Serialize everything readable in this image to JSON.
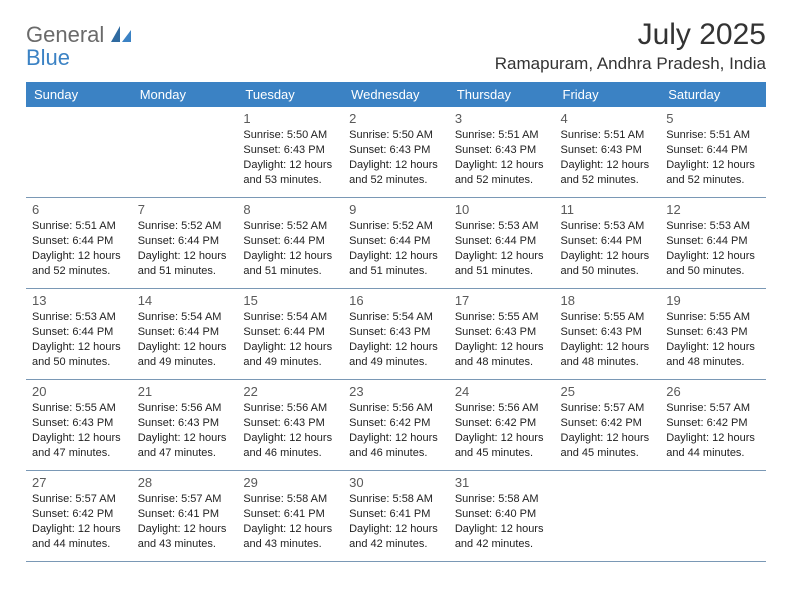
{
  "logo": {
    "general": "General",
    "blue": "Blue"
  },
  "title": "July 2025",
  "location": "Ramapuram, Andhra Pradesh, India",
  "colors": {
    "header_bg": "#3b82c4",
    "header_text": "#ffffff",
    "row_border": "#7a98b5",
    "text": "#222222",
    "daynum": "#5a5a5a",
    "logo_gray": "#6a6a6a",
    "logo_blue": "#3b82c4",
    "page_bg": "#ffffff"
  },
  "weekdays": [
    "Sunday",
    "Monday",
    "Tuesday",
    "Wednesday",
    "Thursday",
    "Friday",
    "Saturday"
  ],
  "weeks": [
    [
      null,
      null,
      {
        "n": "1",
        "sr": "5:50 AM",
        "ss": "6:43 PM",
        "dl1": "Daylight: 12 hours",
        "dl2": "and 53 minutes."
      },
      {
        "n": "2",
        "sr": "5:50 AM",
        "ss": "6:43 PM",
        "dl1": "Daylight: 12 hours",
        "dl2": "and 52 minutes."
      },
      {
        "n": "3",
        "sr": "5:51 AM",
        "ss": "6:43 PM",
        "dl1": "Daylight: 12 hours",
        "dl2": "and 52 minutes."
      },
      {
        "n": "4",
        "sr": "5:51 AM",
        "ss": "6:43 PM",
        "dl1": "Daylight: 12 hours",
        "dl2": "and 52 minutes."
      },
      {
        "n": "5",
        "sr": "5:51 AM",
        "ss": "6:44 PM",
        "dl1": "Daylight: 12 hours",
        "dl2": "and 52 minutes."
      }
    ],
    [
      {
        "n": "6",
        "sr": "5:51 AM",
        "ss": "6:44 PM",
        "dl1": "Daylight: 12 hours",
        "dl2": "and 52 minutes."
      },
      {
        "n": "7",
        "sr": "5:52 AM",
        "ss": "6:44 PM",
        "dl1": "Daylight: 12 hours",
        "dl2": "and 51 minutes."
      },
      {
        "n": "8",
        "sr": "5:52 AM",
        "ss": "6:44 PM",
        "dl1": "Daylight: 12 hours",
        "dl2": "and 51 minutes."
      },
      {
        "n": "9",
        "sr": "5:52 AM",
        "ss": "6:44 PM",
        "dl1": "Daylight: 12 hours",
        "dl2": "and 51 minutes."
      },
      {
        "n": "10",
        "sr": "5:53 AM",
        "ss": "6:44 PM",
        "dl1": "Daylight: 12 hours",
        "dl2": "and 51 minutes."
      },
      {
        "n": "11",
        "sr": "5:53 AM",
        "ss": "6:44 PM",
        "dl1": "Daylight: 12 hours",
        "dl2": "and 50 minutes."
      },
      {
        "n": "12",
        "sr": "5:53 AM",
        "ss": "6:44 PM",
        "dl1": "Daylight: 12 hours",
        "dl2": "and 50 minutes."
      }
    ],
    [
      {
        "n": "13",
        "sr": "5:53 AM",
        "ss": "6:44 PM",
        "dl1": "Daylight: 12 hours",
        "dl2": "and 50 minutes."
      },
      {
        "n": "14",
        "sr": "5:54 AM",
        "ss": "6:44 PM",
        "dl1": "Daylight: 12 hours",
        "dl2": "and 49 minutes."
      },
      {
        "n": "15",
        "sr": "5:54 AM",
        "ss": "6:44 PM",
        "dl1": "Daylight: 12 hours",
        "dl2": "and 49 minutes."
      },
      {
        "n": "16",
        "sr": "5:54 AM",
        "ss": "6:43 PM",
        "dl1": "Daylight: 12 hours",
        "dl2": "and 49 minutes."
      },
      {
        "n": "17",
        "sr": "5:55 AM",
        "ss": "6:43 PM",
        "dl1": "Daylight: 12 hours",
        "dl2": "and 48 minutes."
      },
      {
        "n": "18",
        "sr": "5:55 AM",
        "ss": "6:43 PM",
        "dl1": "Daylight: 12 hours",
        "dl2": "and 48 minutes."
      },
      {
        "n": "19",
        "sr": "5:55 AM",
        "ss": "6:43 PM",
        "dl1": "Daylight: 12 hours",
        "dl2": "and 48 minutes."
      }
    ],
    [
      {
        "n": "20",
        "sr": "5:55 AM",
        "ss": "6:43 PM",
        "dl1": "Daylight: 12 hours",
        "dl2": "and 47 minutes."
      },
      {
        "n": "21",
        "sr": "5:56 AM",
        "ss": "6:43 PM",
        "dl1": "Daylight: 12 hours",
        "dl2": "and 47 minutes."
      },
      {
        "n": "22",
        "sr": "5:56 AM",
        "ss": "6:43 PM",
        "dl1": "Daylight: 12 hours",
        "dl2": "and 46 minutes."
      },
      {
        "n": "23",
        "sr": "5:56 AM",
        "ss": "6:42 PM",
        "dl1": "Daylight: 12 hours",
        "dl2": "and 46 minutes."
      },
      {
        "n": "24",
        "sr": "5:56 AM",
        "ss": "6:42 PM",
        "dl1": "Daylight: 12 hours",
        "dl2": "and 45 minutes."
      },
      {
        "n": "25",
        "sr": "5:57 AM",
        "ss": "6:42 PM",
        "dl1": "Daylight: 12 hours",
        "dl2": "and 45 minutes."
      },
      {
        "n": "26",
        "sr": "5:57 AM",
        "ss": "6:42 PM",
        "dl1": "Daylight: 12 hours",
        "dl2": "and 44 minutes."
      }
    ],
    [
      {
        "n": "27",
        "sr": "5:57 AM",
        "ss": "6:42 PM",
        "dl1": "Daylight: 12 hours",
        "dl2": "and 44 minutes."
      },
      {
        "n": "28",
        "sr": "5:57 AM",
        "ss": "6:41 PM",
        "dl1": "Daylight: 12 hours",
        "dl2": "and 43 minutes."
      },
      {
        "n": "29",
        "sr": "5:58 AM",
        "ss": "6:41 PM",
        "dl1": "Daylight: 12 hours",
        "dl2": "and 43 minutes."
      },
      {
        "n": "30",
        "sr": "5:58 AM",
        "ss": "6:41 PM",
        "dl1": "Daylight: 12 hours",
        "dl2": "and 42 minutes."
      },
      {
        "n": "31",
        "sr": "5:58 AM",
        "ss": "6:40 PM",
        "dl1": "Daylight: 12 hours",
        "dl2": "and 42 minutes."
      },
      null,
      null
    ]
  ],
  "labels": {
    "sunrise": "Sunrise: ",
    "sunset": "Sunset: "
  }
}
